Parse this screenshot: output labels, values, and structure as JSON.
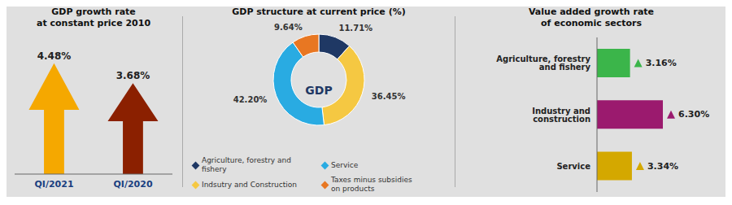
{
  "chart_data": [
    {
      "type": "bar",
      "title": "GDP growth rate",
      "subtitle": "at constant price 2010",
      "categories": [
        "QI/2021",
        "QI/2020"
      ],
      "values": [
        4.48,
        3.68
      ],
      "value_labels": [
        "4.48%",
        "3.68%"
      ],
      "data_labels": true,
      "colors": [
        "#F5A800",
        "#8B2000"
      ],
      "ylim": [
        0,
        5
      ],
      "tick_labels": "x"
    },
    {
      "type": "donut",
      "title": "GDP structure at current price (%)",
      "categories": [
        "Agriculture, forestry and fishery",
        "Indsutry and Construction",
        "Service",
        "Taxes minus subsidies\non products"
      ],
      "values": [
        11.71,
        36.45,
        42.2,
        9.64
      ],
      "value_labels": [
        "11.71%",
        "36.45%",
        "42.20%",
        "9.64%"
      ],
      "data_labels": true,
      "colors": [
        "#1F3864",
        "#F5C842",
        "#29ABE2",
        "#E87722"
      ],
      "legend": "bottom",
      "annotations": [
        "GDP"
      ]
    },
    {
      "type": "bar",
      "orientation": "horizontal",
      "title": "Value added growth rate",
      "subtitle": "of economic sectors",
      "categories": [
        "Agriculture, forestry and fishery",
        "Industry and construction",
        "Service"
      ],
      "values": [
        3.16,
        6.3,
        3.34
      ],
      "value_labels": [
        "3.16%",
        "6.30%",
        "3.34%"
      ],
      "data_labels": true,
      "colors": [
        "#3BB54A",
        "#9B1A6E",
        "#D4A800"
      ],
      "xlim": [
        0,
        7
      ],
      "tick_labels": "y",
      "marker": "triangle-up"
    }
  ]
}
